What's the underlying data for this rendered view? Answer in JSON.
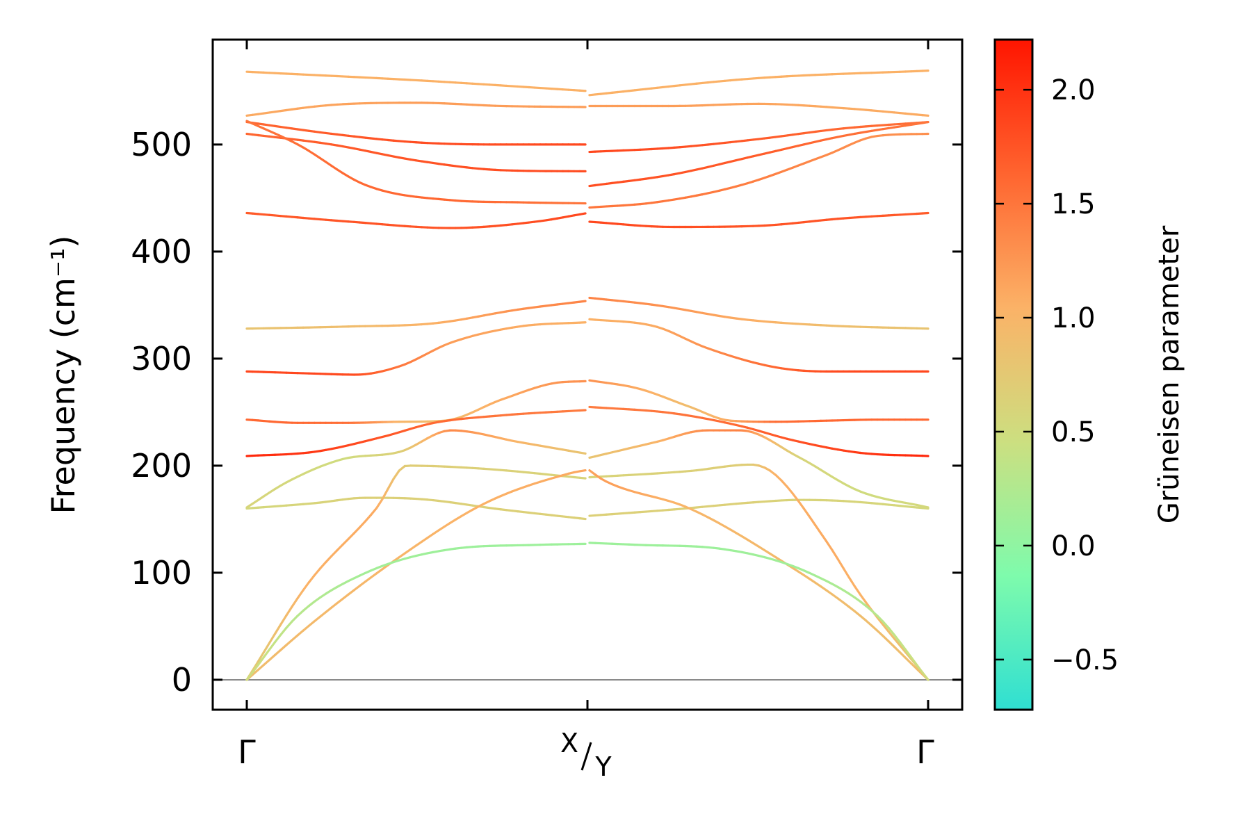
{
  "chart_data": {
    "type": "line",
    "title": "",
    "xlabel": "",
    "ylabel": "Frequency (cm⁻¹)",
    "ylim": [
      -28,
      598
    ],
    "yticks": [
      0,
      100,
      200,
      300,
      400,
      500
    ],
    "yticklabels": [
      "0",
      "100",
      "200",
      "300",
      "400",
      "500"
    ],
    "x_range": [
      -0.1,
      2.1
    ],
    "kpoints": [
      {
        "x": 0,
        "label": "Γ"
      },
      {
        "x": 1,
        "label_top": "X",
        "label_bottom": "Y"
      },
      {
        "x": 2,
        "label": "Γ"
      }
    ],
    "grid": false,
    "zero_line": 0,
    "series": [
      {
        "x": [
          0,
          0.5,
          1
        ],
        "values": [
          568,
          560,
          550
        ],
        "gamma": [
          1.05,
          1.05,
          1.05
        ]
      },
      {
        "x": [
          1,
          1.5,
          2
        ],
        "values": [
          546,
          562,
          569
        ],
        "gamma": [
          1.05,
          1.05,
          1.05
        ]
      },
      {
        "x": [
          0,
          0.25,
          0.5,
          0.75,
          1
        ],
        "values": [
          527,
          537,
          539,
          536,
          535
        ],
        "gamma": [
          1.1,
          1.15,
          1.2,
          1.2,
          1.2
        ]
      },
      {
        "x": [
          1,
          1.25,
          1.5,
          1.75,
          2
        ],
        "values": [
          536,
          536,
          538,
          534,
          527
        ],
        "gamma": [
          1.2,
          1.2,
          1.15,
          1.1,
          1.1
        ]
      },
      {
        "x": [
          0,
          0.25,
          0.5,
          0.75,
          1
        ],
        "values": [
          521,
          510,
          502,
          500,
          500
        ],
        "gamma": [
          1.6,
          1.7,
          1.8,
          1.8,
          1.85
        ]
      },
      {
        "x": [
          1,
          1.25,
          1.5,
          1.75,
          2
        ],
        "values": [
          493,
          497,
          505,
          515,
          521
        ],
        "gamma": [
          1.85,
          1.8,
          1.7,
          1.6,
          1.55
        ]
      },
      {
        "x": [
          0,
          0.25,
          0.5,
          0.75,
          1
        ],
        "values": [
          510,
          500,
          485,
          476,
          475
        ],
        "gamma": [
          1.6,
          1.7,
          1.75,
          1.8,
          1.8
        ]
      },
      {
        "x": [
          1,
          1.25,
          1.5,
          1.75,
          2
        ],
        "values": [
          461,
          472,
          490,
          508,
          521
        ],
        "gamma": [
          1.8,
          1.75,
          1.7,
          1.55,
          1.5
        ]
      },
      {
        "x": [
          0,
          0.15,
          0.35,
          0.6,
          0.8,
          1
        ],
        "values": [
          522,
          500,
          462,
          448,
          446,
          445
        ],
        "gamma": [
          1.5,
          1.55,
          1.6,
          1.6,
          1.55,
          1.5
        ]
      },
      {
        "x": [
          1,
          1.2,
          1.45,
          1.7,
          1.85,
          2
        ],
        "values": [
          441,
          446,
          462,
          490,
          508,
          510
        ],
        "gamma": [
          1.5,
          1.5,
          1.45,
          1.35,
          1.3,
          1.3
        ]
      },
      {
        "x": [
          0,
          0.3,
          0.6,
          0.85,
          1
        ],
        "values": [
          436,
          428,
          422,
          428,
          436
        ],
        "gamma": [
          1.7,
          1.75,
          1.75,
          1.8,
          1.85
        ]
      },
      {
        "x": [
          1,
          1.25,
          1.5,
          1.75,
          2
        ],
        "values": [
          428,
          423,
          424,
          431,
          436
        ],
        "gamma": [
          1.85,
          1.8,
          1.75,
          1.75,
          1.7
        ]
      },
      {
        "x": [
          0,
          0.3,
          0.55,
          0.8,
          1
        ],
        "values": [
          328,
          330,
          333,
          346,
          354
        ],
        "gamma": [
          0.8,
          0.9,
          1.05,
          1.3,
          1.4
        ]
      },
      {
        "x": [
          1,
          1.2,
          1.45,
          1.7,
          2
        ],
        "values": [
          357,
          350,
          337,
          331,
          328
        ],
        "gamma": [
          1.4,
          1.3,
          1.1,
          0.9,
          0.8
        ]
      },
      {
        "x": [
          0,
          0.2,
          0.32,
          0.45,
          0.6,
          0.8,
          1
        ],
        "values": [
          288,
          286,
          285,
          293,
          315,
          330,
          334
        ],
        "gamma": [
          1.85,
          1.85,
          1.8,
          1.5,
          1.2,
          1.1,
          1.05
        ]
      },
      {
        "x": [
          1,
          1.2,
          1.35,
          1.55,
          1.7,
          1.85,
          2
        ],
        "values": [
          337,
          330,
          310,
          292,
          288,
          288,
          288
        ],
        "gamma": [
          1.05,
          1.1,
          1.3,
          1.6,
          1.8,
          1.85,
          1.85
        ]
      },
      {
        "x": [
          0,
          0.15,
          0.3,
          0.45,
          0.58,
          0.75,
          0.9,
          1
        ],
        "values": [
          243,
          240,
          240,
          241,
          242,
          262,
          277,
          279
        ],
        "gamma": [
          1.6,
          1.6,
          1.55,
          1.0,
          0.9,
          1.1,
          1.25,
          1.3
        ]
      },
      {
        "x": [
          1,
          1.15,
          1.3,
          1.42,
          1.55,
          1.7,
          1.85,
          2
        ],
        "values": [
          280,
          272,
          255,
          242,
          241,
          242,
          243,
          243
        ],
        "gamma": [
          1.3,
          1.1,
          0.9,
          1.1,
          1.55,
          1.6,
          1.6,
          1.6
        ]
      },
      {
        "x": [
          0,
          0.2,
          0.4,
          0.55,
          0.75,
          1
        ],
        "values": [
          209,
          213,
          227,
          240,
          247,
          252
        ],
        "gamma": [
          2.1,
          1.95,
          1.75,
          1.6,
          1.5,
          1.45
        ]
      },
      {
        "x": [
          1,
          1.25,
          1.45,
          1.6,
          1.8,
          2
        ],
        "values": [
          255,
          249,
          237,
          224,
          212,
          209
        ],
        "gamma": [
          1.45,
          1.5,
          1.6,
          1.75,
          1.95,
          2.1
        ]
      },
      {
        "x": [
          0,
          0.12,
          0.28,
          0.45,
          0.6,
          0.8,
          1
        ],
        "values": [
          161,
          185,
          206,
          213,
          233,
          222,
          211
        ],
        "gamma": [
          0.6,
          0.55,
          0.5,
          0.65,
          1.35,
          1.0,
          0.8
        ]
      },
      {
        "x": [
          1,
          1.2,
          1.35,
          1.45,
          1.62,
          1.8,
          2
        ],
        "values": [
          207,
          222,
          233,
          233,
          208,
          176,
          161
        ],
        "gamma": [
          0.8,
          1.0,
          1.35,
          1.4,
          0.6,
          0.5,
          0.55
        ]
      },
      {
        "x": [
          0,
          0.2,
          0.35,
          0.5,
          0.75,
          1
        ],
        "values": [
          160,
          165,
          170,
          169,
          159,
          150
        ],
        "gamma": [
          0.55,
          0.6,
          0.65,
          0.65,
          0.65,
          0.65
        ]
      },
      {
        "x": [
          1,
          1.25,
          1.5,
          1.62,
          1.75,
          2
        ],
        "values": [
          153,
          159,
          166,
          168,
          167,
          160
        ],
        "gamma": [
          0.65,
          0.65,
          0.65,
          0.6,
          0.6,
          0.55
        ]
      },
      {
        "x": [
          0,
          0.18,
          0.38,
          0.47,
          0.7,
          1
        ],
        "values": [
          0,
          90,
          160,
          200,
          197,
          188
        ],
        "gamma": [
          0.7,
          1.05,
          1.1,
          0.7,
          0.65,
          0.6
        ]
      },
      {
        "x": [
          1,
          1.3,
          1.48,
          1.55,
          1.7,
          1.8,
          2
        ],
        "values": [
          189,
          195,
          201,
          192,
          130,
          80,
          0
        ],
        "gamma": [
          0.6,
          0.65,
          0.7,
          1.05,
          1.1,
          1.05,
          0.7
        ]
      },
      {
        "x": [
          0,
          0.2,
          0.45,
          0.7,
          0.95,
          1
        ],
        "values": [
          0,
          55,
          115,
          165,
          193,
          196
        ],
        "gamma": [
          0.9,
          0.95,
          1.0,
          1.05,
          1.1,
          1.15
        ]
      },
      {
        "x": [
          1,
          1.05,
          1.3,
          1.55,
          1.8,
          2
        ],
        "values": [
          197,
          186,
          160,
          115,
          60,
          0
        ],
        "gamma": [
          1.15,
          1.2,
          1.0,
          0.95,
          0.9,
          0.9
        ]
      },
      {
        "x": [
          0,
          0.15,
          0.35,
          0.6,
          0.85,
          1
        ],
        "values": [
          0,
          60,
          100,
          122,
          126,
          127
        ],
        "gamma": [
          0.5,
          0.3,
          0.15,
          0.1,
          0.1,
          0.1
        ]
      },
      {
        "x": [
          1,
          1.15,
          1.4,
          1.65,
          1.85,
          2
        ],
        "values": [
          128,
          126,
          122,
          100,
          60,
          0
        ],
        "gamma": [
          0.1,
          0.1,
          0.1,
          0.15,
          0.3,
          0.5
        ]
      }
    ],
    "colorbar": {
      "label": "Grüneisen parameter",
      "range": [
        -0.72,
        2.22
      ],
      "ticks": [
        -0.5,
        0.0,
        0.5,
        1.0,
        1.5,
        2.0
      ],
      "ticklabels": [
        "−0.5",
        "0.0",
        "0.5",
        "1.0",
        "1.5",
        "2.0"
      ],
      "colormap": "rainbow (upper half)",
      "colors": [
        "#2fdfd2",
        "#7efbac",
        "#ccdf80",
        "#fbb267",
        "#ff642f",
        "#ff1500"
      ]
    },
    "colors": {
      "zero_line": "#8a8a8a",
      "frame": "#000000"
    }
  }
}
